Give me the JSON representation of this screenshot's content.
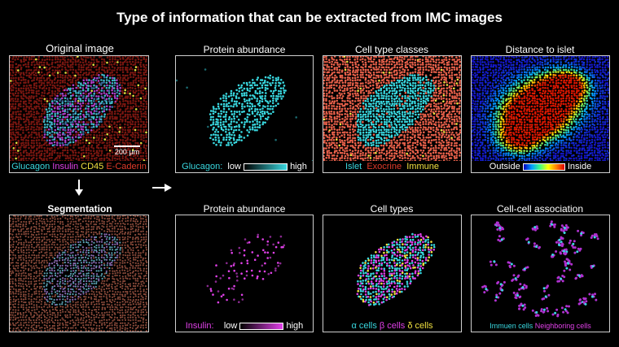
{
  "title": "Type of information that can be extracted from IMC images",
  "top": {
    "original": {
      "title": "Original image",
      "scale": "200 µm",
      "legend": {
        "glucagon": "Glucagon",
        "insulin": "Insulin",
        "cd45": "CD45",
        "ecad": "E-Caderin"
      }
    },
    "protein": {
      "title": "Protein abundance",
      "legend": {
        "marker": "Glucagon:",
        "low": "low",
        "high": "high"
      }
    },
    "classes": {
      "title": "Cell type classes",
      "legend": {
        "islet": "Islet",
        "exocrine": "Exocrine",
        "immune": "Immune"
      }
    },
    "distance": {
      "title": "Distance to islet",
      "legend": {
        "outside": "Outside",
        "inside": "Inside"
      }
    }
  },
  "bottom": {
    "segmentation": {
      "title": "Segmentation"
    },
    "protein": {
      "title": "Protein abundance",
      "legend": {
        "marker": "Insulin:",
        "low": "low",
        "high": "high"
      }
    },
    "celltypes": {
      "title": "Cell types",
      "legend": {
        "alpha": "α cells",
        "beta": "β cells",
        "delta": "δ cells"
      }
    },
    "association": {
      "title": "Cell-cell association",
      "legend": {
        "immune": "Immuen cells",
        "neighbor": "Neighboring cells"
      }
    }
  },
  "colors": {
    "cyan": "#39d8e0",
    "magenta": "#e040e8",
    "yellow": "#f0e040",
    "red": "#e03a2a",
    "exocrine": "#e86a4a",
    "purple": "#b030d0"
  }
}
